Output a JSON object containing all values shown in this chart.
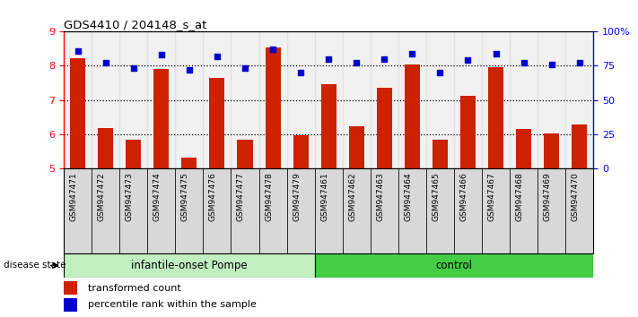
{
  "title": "GDS4410 / 204148_s_at",
  "samples": [
    "GSM947471",
    "GSM947472",
    "GSM947473",
    "GSM947474",
    "GSM947475",
    "GSM947476",
    "GSM947477",
    "GSM947478",
    "GSM947479",
    "GSM947461",
    "GSM947462",
    "GSM947463",
    "GSM947464",
    "GSM947465",
    "GSM947466",
    "GSM947467",
    "GSM947468",
    "GSM947469",
    "GSM947470"
  ],
  "bar_values": [
    8.22,
    6.18,
    5.82,
    7.9,
    5.3,
    7.65,
    5.82,
    8.55,
    5.95,
    7.45,
    6.22,
    7.35,
    8.05,
    5.83,
    7.12,
    7.95,
    6.15,
    6.02,
    6.28
  ],
  "percentile_values": [
    86,
    77,
    73,
    83,
    72,
    82,
    73,
    87,
    70,
    80,
    77,
    80,
    84,
    70,
    79,
    84,
    77,
    76,
    77
  ],
  "group_labels": [
    "infantile-onset Pompe",
    "control"
  ],
  "group_sizes": [
    9,
    10
  ],
  "ylim_left": [
    5,
    9
  ],
  "ylim_right": [
    0,
    100
  ],
  "yticks_left": [
    5,
    6,
    7,
    8,
    9
  ],
  "yticks_right": [
    0,
    25,
    50,
    75,
    100
  ],
  "bar_color": "#cc2200",
  "scatter_color": "#0000cc",
  "group1_color": "#c0efc0",
  "group2_color": "#44cc44",
  "cell_bg_color": "#d8d8d8",
  "legend_bar_label": "transformed count",
  "legend_scatter_label": "percentile rank within the sample",
  "disease_state_label": "disease state",
  "dotted_lines": [
    6,
    7,
    8
  ]
}
